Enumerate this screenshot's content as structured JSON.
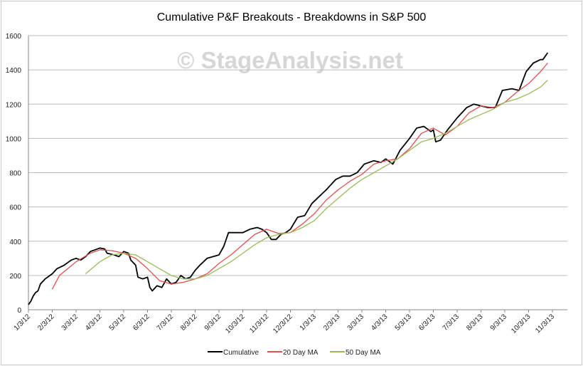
{
  "chart_data": {
    "type": "line",
    "title": "Cumulative P&F Breakouts - Breakdowns in S&P 500",
    "watermark": "© StageAnalysis.net",
    "xlabel": "",
    "ylabel": "",
    "ylim": [
      0,
      1600
    ],
    "yticks": [
      0,
      200,
      400,
      600,
      800,
      1000,
      1200,
      1400,
      1600
    ],
    "grid": true,
    "legend_position": "bottom",
    "x_unit": "months since 1/3/12",
    "categories": [
      "1/3/12",
      "2/3/12",
      "3/3/12",
      "4/3/12",
      "5/3/12",
      "6/3/12",
      "7/3/12",
      "8/3/12",
      "9/3/12",
      "10/3/12",
      "11/3/12",
      "12/3/12",
      "1/3/13",
      "2/3/13",
      "3/3/13",
      "4/3/13",
      "5/3/13",
      "6/3/13",
      "7/3/13",
      "8/3/13",
      "9/3/13",
      "10/3/13",
      "11/3/13"
    ],
    "series": [
      {
        "name": "Cumulative",
        "color": "#000000",
        "points": [
          [
            0,
            30
          ],
          [
            0.1,
            50
          ],
          [
            0.2,
            80
          ],
          [
            0.3,
            100
          ],
          [
            0.4,
            110
          ],
          [
            0.5,
            150
          ],
          [
            0.7,
            180
          ],
          [
            0.9,
            200
          ],
          [
            1.0,
            210
          ],
          [
            1.2,
            240
          ],
          [
            1.5,
            260
          ],
          [
            1.8,
            290
          ],
          [
            2.0,
            300
          ],
          [
            2.2,
            290
          ],
          [
            2.4,
            310
          ],
          [
            2.6,
            340
          ],
          [
            2.8,
            350
          ],
          [
            3.0,
            360
          ],
          [
            3.2,
            355
          ],
          [
            3.3,
            330
          ],
          [
            3.6,
            320
          ],
          [
            3.8,
            310
          ],
          [
            4.0,
            340
          ],
          [
            4.2,
            330
          ],
          [
            4.3,
            290
          ],
          [
            4.5,
            260
          ],
          [
            4.6,
            190
          ],
          [
            4.8,
            180
          ],
          [
            5.0,
            190
          ],
          [
            5.1,
            130
          ],
          [
            5.2,
            110
          ],
          [
            5.4,
            140
          ],
          [
            5.6,
            130
          ],
          [
            5.8,
            180
          ],
          [
            6.0,
            150
          ],
          [
            6.2,
            160
          ],
          [
            6.4,
            200
          ],
          [
            6.6,
            180
          ],
          [
            6.8,
            190
          ],
          [
            7.0,
            230
          ],
          [
            7.2,
            260
          ],
          [
            7.5,
            300
          ],
          [
            8.0,
            320
          ],
          [
            8.2,
            370
          ],
          [
            8.4,
            450
          ],
          [
            8.7,
            450
          ],
          [
            9.0,
            450
          ],
          [
            9.3,
            470
          ],
          [
            9.6,
            480
          ],
          [
            9.8,
            470
          ],
          [
            10.0,
            450
          ],
          [
            10.2,
            410
          ],
          [
            10.4,
            410
          ],
          [
            10.6,
            440
          ],
          [
            10.8,
            450
          ],
          [
            11.0,
            470
          ],
          [
            11.3,
            540
          ],
          [
            11.6,
            550
          ],
          [
            11.9,
            620
          ],
          [
            12.2,
            660
          ],
          [
            12.5,
            700
          ],
          [
            12.9,
            760
          ],
          [
            13.2,
            780
          ],
          [
            13.5,
            780
          ],
          [
            13.8,
            800
          ],
          [
            14.1,
            850
          ],
          [
            14.5,
            870
          ],
          [
            14.8,
            860
          ],
          [
            15.0,
            880
          ],
          [
            15.3,
            850
          ],
          [
            15.6,
            930
          ],
          [
            16.0,
            1000
          ],
          [
            16.3,
            1060
          ],
          [
            16.6,
            1070
          ],
          [
            16.9,
            1040
          ],
          [
            17.0,
            1050
          ],
          [
            17.1,
            980
          ],
          [
            17.3,
            990
          ],
          [
            17.6,
            1050
          ],
          [
            18.0,
            1120
          ],
          [
            18.4,
            1180
          ],
          [
            18.7,
            1200
          ],
          [
            19.0,
            1190
          ],
          [
            19.3,
            1180
          ],
          [
            19.6,
            1180
          ],
          [
            19.9,
            1280
          ],
          [
            20.3,
            1290
          ],
          [
            20.6,
            1280
          ],
          [
            20.9,
            1390
          ],
          [
            21.2,
            1440
          ],
          [
            21.5,
            1460
          ],
          [
            21.6,
            1460
          ],
          [
            21.8,
            1500
          ]
        ]
      },
      {
        "name": "20 Day MA",
        "color": "#e05050",
        "points": [
          [
            1.0,
            120
          ],
          [
            1.3,
            200
          ],
          [
            2.0,
            280
          ],
          [
            2.6,
            330
          ],
          [
            3.0,
            350
          ],
          [
            3.5,
            345
          ],
          [
            4.0,
            330
          ],
          [
            4.5,
            300
          ],
          [
            5.0,
            240
          ],
          [
            5.5,
            170
          ],
          [
            6.0,
            150
          ],
          [
            6.5,
            160
          ],
          [
            7.0,
            180
          ],
          [
            7.5,
            210
          ],
          [
            8.0,
            270
          ],
          [
            8.5,
            320
          ],
          [
            9.0,
            380
          ],
          [
            9.5,
            440
          ],
          [
            10.0,
            470
          ],
          [
            10.5,
            445
          ],
          [
            11.0,
            450
          ],
          [
            11.5,
            500
          ],
          [
            12.0,
            560
          ],
          [
            12.5,
            640
          ],
          [
            13.0,
            700
          ],
          [
            13.5,
            750
          ],
          [
            14.0,
            790
          ],
          [
            14.5,
            850
          ],
          [
            15.0,
            870
          ],
          [
            15.5,
            880
          ],
          [
            16.0,
            940
          ],
          [
            16.5,
            1030
          ],
          [
            17.0,
            1060
          ],
          [
            17.5,
            1020
          ],
          [
            18.0,
            1070
          ],
          [
            18.5,
            1150
          ],
          [
            19.0,
            1190
          ],
          [
            19.5,
            1180
          ],
          [
            20.0,
            1210
          ],
          [
            20.5,
            1270
          ],
          [
            21.0,
            1320
          ],
          [
            21.5,
            1390
          ],
          [
            21.8,
            1440
          ]
        ]
      },
      {
        "name": "50 Day MA",
        "color": "#9bbb59",
        "points": [
          [
            2.4,
            210
          ],
          [
            3.0,
            280
          ],
          [
            3.5,
            320
          ],
          [
            4.0,
            330
          ],
          [
            4.5,
            320
          ],
          [
            5.0,
            280
          ],
          [
            5.5,
            240
          ],
          [
            6.0,
            200
          ],
          [
            6.5,
            180
          ],
          [
            7.0,
            180
          ],
          [
            7.5,
            200
          ],
          [
            8.0,
            240
          ],
          [
            8.5,
            280
          ],
          [
            9.0,
            330
          ],
          [
            9.5,
            380
          ],
          [
            10.0,
            420
          ],
          [
            10.5,
            440
          ],
          [
            11.0,
            450
          ],
          [
            11.5,
            480
          ],
          [
            12.0,
            520
          ],
          [
            12.5,
            590
          ],
          [
            13.0,
            650
          ],
          [
            13.5,
            710
          ],
          [
            14.0,
            760
          ],
          [
            14.5,
            800
          ],
          [
            15.0,
            840
          ],
          [
            15.5,
            880
          ],
          [
            16.0,
            930
          ],
          [
            16.5,
            980
          ],
          [
            17.0,
            1000
          ],
          [
            17.5,
            1030
          ],
          [
            18.0,
            1070
          ],
          [
            18.5,
            1110
          ],
          [
            19.0,
            1140
          ],
          [
            19.5,
            1170
          ],
          [
            20.0,
            1210
          ],
          [
            20.5,
            1230
          ],
          [
            21.0,
            1260
          ],
          [
            21.5,
            1300
          ],
          [
            21.8,
            1340
          ]
        ]
      }
    ]
  }
}
